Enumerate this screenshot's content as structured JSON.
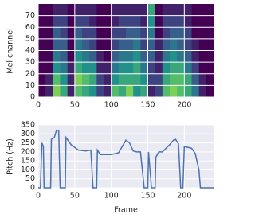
{
  "chart_data": [
    {
      "type": "heatmap",
      "y_label": "Mel channel",
      "xlim": [
        0,
        240
      ],
      "ylim": [
        0,
        80
      ],
      "xticks": [
        0,
        50,
        100,
        150,
        200
      ],
      "yticks": [
        0,
        10,
        20,
        30,
        40,
        50,
        60,
        70
      ],
      "grid": true,
      "z": [
        [
          0,
          0.1,
          0.8,
          0.6,
          0.1,
          0.7,
          0.6,
          0.5,
          0.2,
          0.1,
          0.7,
          0.6,
          0.8,
          0.5,
          0.6,
          0.1,
          0.2,
          0.7,
          0.8,
          0.7,
          0.6,
          0.4,
          0.1,
          0
        ],
        [
          0,
          0.1,
          0.7,
          0.5,
          0.1,
          0.8,
          0.7,
          0.6,
          0.2,
          0.1,
          0.5,
          0.6,
          0.6,
          0.6,
          0.5,
          0.2,
          0.2,
          0.6,
          0.7,
          0.7,
          0.6,
          0.3,
          0.1,
          0
        ],
        [
          0,
          0,
          0.5,
          0.4,
          0.1,
          0.6,
          0.5,
          0.5,
          0.1,
          0.1,
          0.4,
          0.5,
          0.5,
          0.6,
          0.4,
          0.2,
          0.1,
          0.5,
          0.6,
          0.6,
          0.4,
          0.2,
          0,
          0
        ],
        [
          0,
          0,
          0.4,
          0.3,
          0,
          0.5,
          0.4,
          0.3,
          0.1,
          0,
          0.3,
          0.4,
          0.4,
          0.5,
          0.3,
          0.3,
          0.1,
          0.4,
          0.5,
          0.4,
          0.3,
          0.1,
          0,
          0
        ],
        [
          0,
          0,
          0.3,
          0.3,
          0,
          0.4,
          0.3,
          0.2,
          0,
          0,
          0.2,
          0.3,
          0.3,
          0.4,
          0.2,
          0.3,
          0.1,
          0.3,
          0.4,
          0.3,
          0.2,
          0.1,
          0,
          0
        ],
        [
          0,
          0,
          0.3,
          0.2,
          0,
          0.3,
          0.2,
          0.2,
          0,
          0,
          0.2,
          0.2,
          0.3,
          0.3,
          0.2,
          0.4,
          0,
          0.2,
          0.3,
          0.3,
          0.2,
          0,
          0,
          0
        ],
        [
          0,
          0,
          0.2,
          0.2,
          0,
          0.2,
          0.2,
          0.1,
          0,
          0,
          0.1,
          0.2,
          0.2,
          0.2,
          0.1,
          0.5,
          0,
          0.2,
          0.2,
          0.2,
          0.1,
          0,
          0,
          0
        ],
        [
          0,
          0,
          0.1,
          0.1,
          0,
          0.1,
          0.1,
          0.1,
          0,
          0,
          0.1,
          0.1,
          0.1,
          0.1,
          0.1,
          0.6,
          0,
          0.1,
          0.1,
          0.1,
          0.1,
          0,
          0,
          0
        ]
      ]
    },
    {
      "type": "line",
      "x_label": "Frame",
      "y_label": "Pitch (Hz)",
      "xlim": [
        0,
        240
      ],
      "ylim": [
        0,
        350
      ],
      "xticks": [
        0,
        50,
        100,
        150,
        200
      ],
      "yticks": [
        0,
        50,
        100,
        150,
        200,
        250,
        300,
        350
      ],
      "grid": true,
      "color": "#4c72b0",
      "x": [
        0,
        3,
        5,
        7,
        8,
        12,
        17,
        18,
        22,
        25,
        28,
        30,
        37,
        38,
        45,
        55,
        65,
        72,
        75,
        80,
        81,
        85,
        100,
        105,
        110,
        115,
        120,
        125,
        130,
        135,
        140,
        145,
        150,
        151,
        155,
        160,
        161,
        165,
        170,
        180,
        185,
        188,
        192,
        195,
        198,
        200,
        210,
        215,
        220,
        222,
        240
      ],
      "values": [
        0,
        0,
        250,
        230,
        0,
        0,
        0,
        270,
        280,
        320,
        320,
        0,
        0,
        280,
        240,
        210,
        205,
        210,
        0,
        0,
        210,
        185,
        185,
        190,
        195,
        230,
        265,
        250,
        205,
        200,
        200,
        0,
        0,
        200,
        0,
        0,
        170,
        200,
        200,
        240,
        265,
        270,
        245,
        0,
        0,
        230,
        220,
        190,
        100,
        0,
        0
      ]
    }
  ]
}
